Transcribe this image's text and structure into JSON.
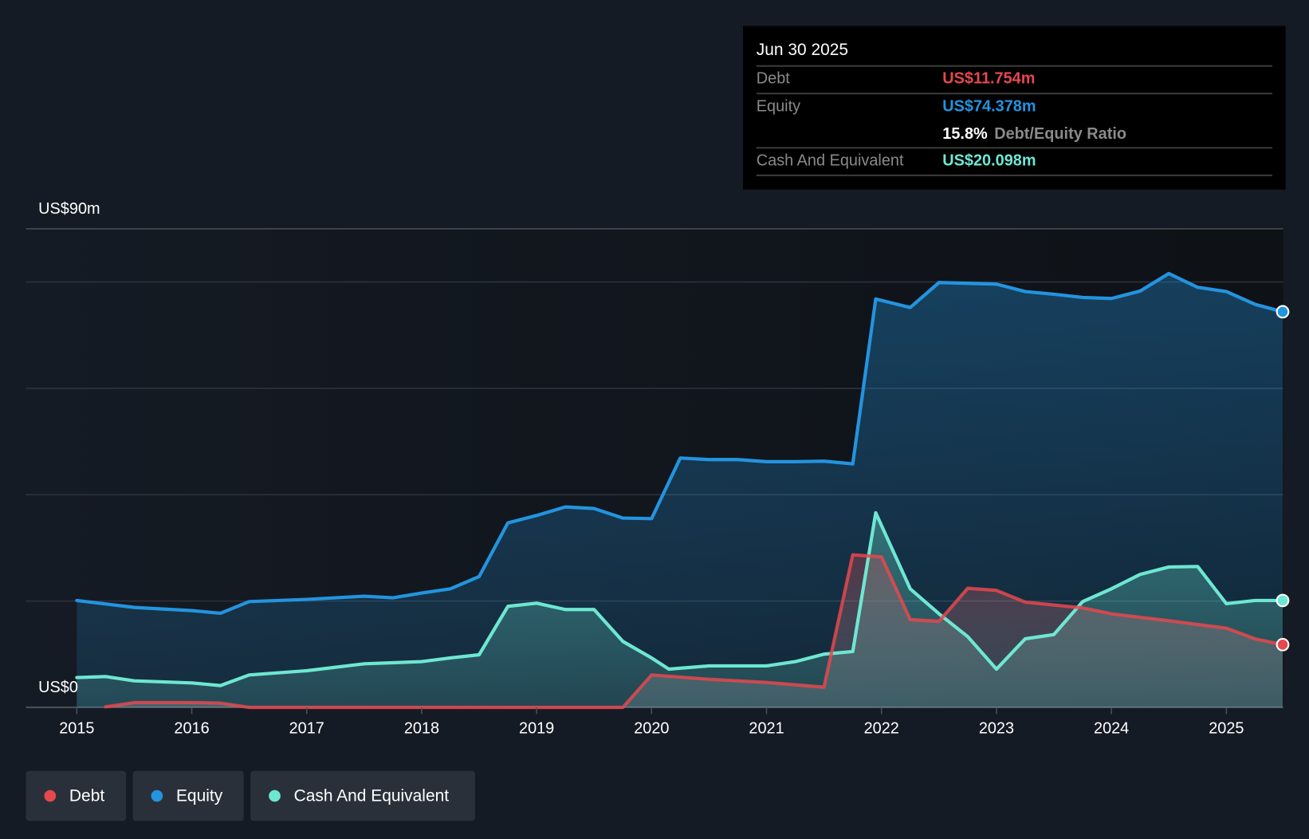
{
  "tooltip": {
    "date": "Jun 30 2025",
    "debt_label": "Debt",
    "debt_value": "US$11.754m",
    "equity_label": "Equity",
    "equity_value": "US$74.378m",
    "ratio_value": "15.8%",
    "ratio_label": "Debt/Equity Ratio",
    "cash_label": "Cash And Equivalent",
    "cash_value": "US$20.098m"
  },
  "chart_data": {
    "type": "area",
    "ylabel_top": "US$90m",
    "ylabel_bottom": "US$0",
    "ylim": [
      0,
      90
    ],
    "xlim": [
      2014.55,
      2025.5
    ],
    "y_gridlines": [
      0,
      20,
      40,
      60,
      80,
      90
    ],
    "x_ticks": [
      "2015",
      "2016",
      "2017",
      "2018",
      "2019",
      "2020",
      "2021",
      "2022",
      "2023",
      "2024",
      "2025"
    ],
    "colors": {
      "debt": "#e5484d",
      "equity": "#2394df",
      "cash": "#6ee7d2"
    },
    "series": [
      {
        "name": "Equity",
        "key": "equity",
        "points": [
          [
            2015,
            20.1
          ],
          [
            2015.5,
            18.8
          ],
          [
            2016,
            18.2
          ],
          [
            2016.25,
            17.7
          ],
          [
            2016.5,
            19.9
          ],
          [
            2017,
            20.3
          ],
          [
            2017.5,
            20.9
          ],
          [
            2017.75,
            20.6
          ],
          [
            2018,
            21.5
          ],
          [
            2018.25,
            22.3
          ],
          [
            2018.5,
            24.6
          ],
          [
            2018.75,
            34.7
          ],
          [
            2019,
            36.1
          ],
          [
            2019.25,
            37.7
          ],
          [
            2019.5,
            37.4
          ],
          [
            2019.75,
            35.6
          ],
          [
            2020,
            35.5
          ],
          [
            2020.25,
            46.9
          ],
          [
            2020.5,
            46.6
          ],
          [
            2020.75,
            46.6
          ],
          [
            2021,
            46.2
          ],
          [
            2021.25,
            46.2
          ],
          [
            2021.5,
            46.3
          ],
          [
            2021.75,
            45.8
          ],
          [
            2021.95,
            76.8
          ],
          [
            2022.25,
            75.2
          ],
          [
            2022.5,
            79.9
          ],
          [
            2023,
            79.6
          ],
          [
            2023.25,
            78.2
          ],
          [
            2023.5,
            77.7
          ],
          [
            2023.75,
            77.1
          ],
          [
            2024,
            76.9
          ],
          [
            2024.25,
            78.3
          ],
          [
            2024.5,
            81.6
          ],
          [
            2024.75,
            79
          ],
          [
            2025,
            78.2
          ],
          [
            2025.25,
            75.8
          ],
          [
            2025.49,
            74.4
          ]
        ]
      },
      {
        "name": "Cash And Equivalent",
        "key": "cash",
        "points": [
          [
            2015,
            5.6
          ],
          [
            2015.25,
            5.8
          ],
          [
            2015.5,
            5.0
          ],
          [
            2016,
            4.6
          ],
          [
            2016.25,
            4.1
          ],
          [
            2016.5,
            6.1
          ],
          [
            2017,
            6.9
          ],
          [
            2017.5,
            8.2
          ],
          [
            2018,
            8.6
          ],
          [
            2018.25,
            9.3
          ],
          [
            2018.5,
            9.9
          ],
          [
            2018.75,
            19
          ],
          [
            2019,
            19.6
          ],
          [
            2019.25,
            18.4
          ],
          [
            2019.5,
            18.4
          ],
          [
            2019.75,
            12.4
          ],
          [
            2020,
            9.3
          ],
          [
            2020.15,
            7.2
          ],
          [
            2020.5,
            7.8
          ],
          [
            2021,
            7.8
          ],
          [
            2021.25,
            8.6
          ],
          [
            2021.5,
            10
          ],
          [
            2021.75,
            10.5
          ],
          [
            2021.95,
            36.6
          ],
          [
            2022.25,
            22.3
          ],
          [
            2022.5,
            17.6
          ],
          [
            2022.75,
            13.3
          ],
          [
            2023,
            7.2
          ],
          [
            2023.25,
            12.9
          ],
          [
            2023.5,
            13.7
          ],
          [
            2023.75,
            19.9
          ],
          [
            2024,
            22.3
          ],
          [
            2024.25,
            25
          ],
          [
            2024.5,
            26.4
          ],
          [
            2024.75,
            26.5
          ],
          [
            2025,
            19.5
          ],
          [
            2025.25,
            20.1
          ],
          [
            2025.49,
            20.1
          ]
        ]
      },
      {
        "name": "Debt",
        "key": "debt",
        "points": [
          [
            2015.25,
            0.1
          ],
          [
            2015.5,
            0.9
          ],
          [
            2016,
            0.9
          ],
          [
            2016.25,
            0.8
          ],
          [
            2016.5,
            0
          ],
          [
            2019.75,
            0
          ],
          [
            2020,
            6.1
          ],
          [
            2020.5,
            5.3
          ],
          [
            2021,
            4.7
          ],
          [
            2021.5,
            3.8
          ],
          [
            2021.75,
            28.7
          ],
          [
            2022,
            28.3
          ],
          [
            2022.25,
            16.5
          ],
          [
            2022.5,
            16.2
          ],
          [
            2022.75,
            22.4
          ],
          [
            2023,
            22
          ],
          [
            2023.25,
            19.8
          ],
          [
            2023.75,
            18.7
          ],
          [
            2024,
            17.6
          ],
          [
            2024.5,
            16.3
          ],
          [
            2025,
            14.9
          ],
          [
            2025.25,
            12.9
          ],
          [
            2025.49,
            11.8
          ]
        ]
      }
    ],
    "legend": [
      "Debt",
      "Equity",
      "Cash And Equivalent"
    ],
    "legend_placement": "bottom-left"
  }
}
